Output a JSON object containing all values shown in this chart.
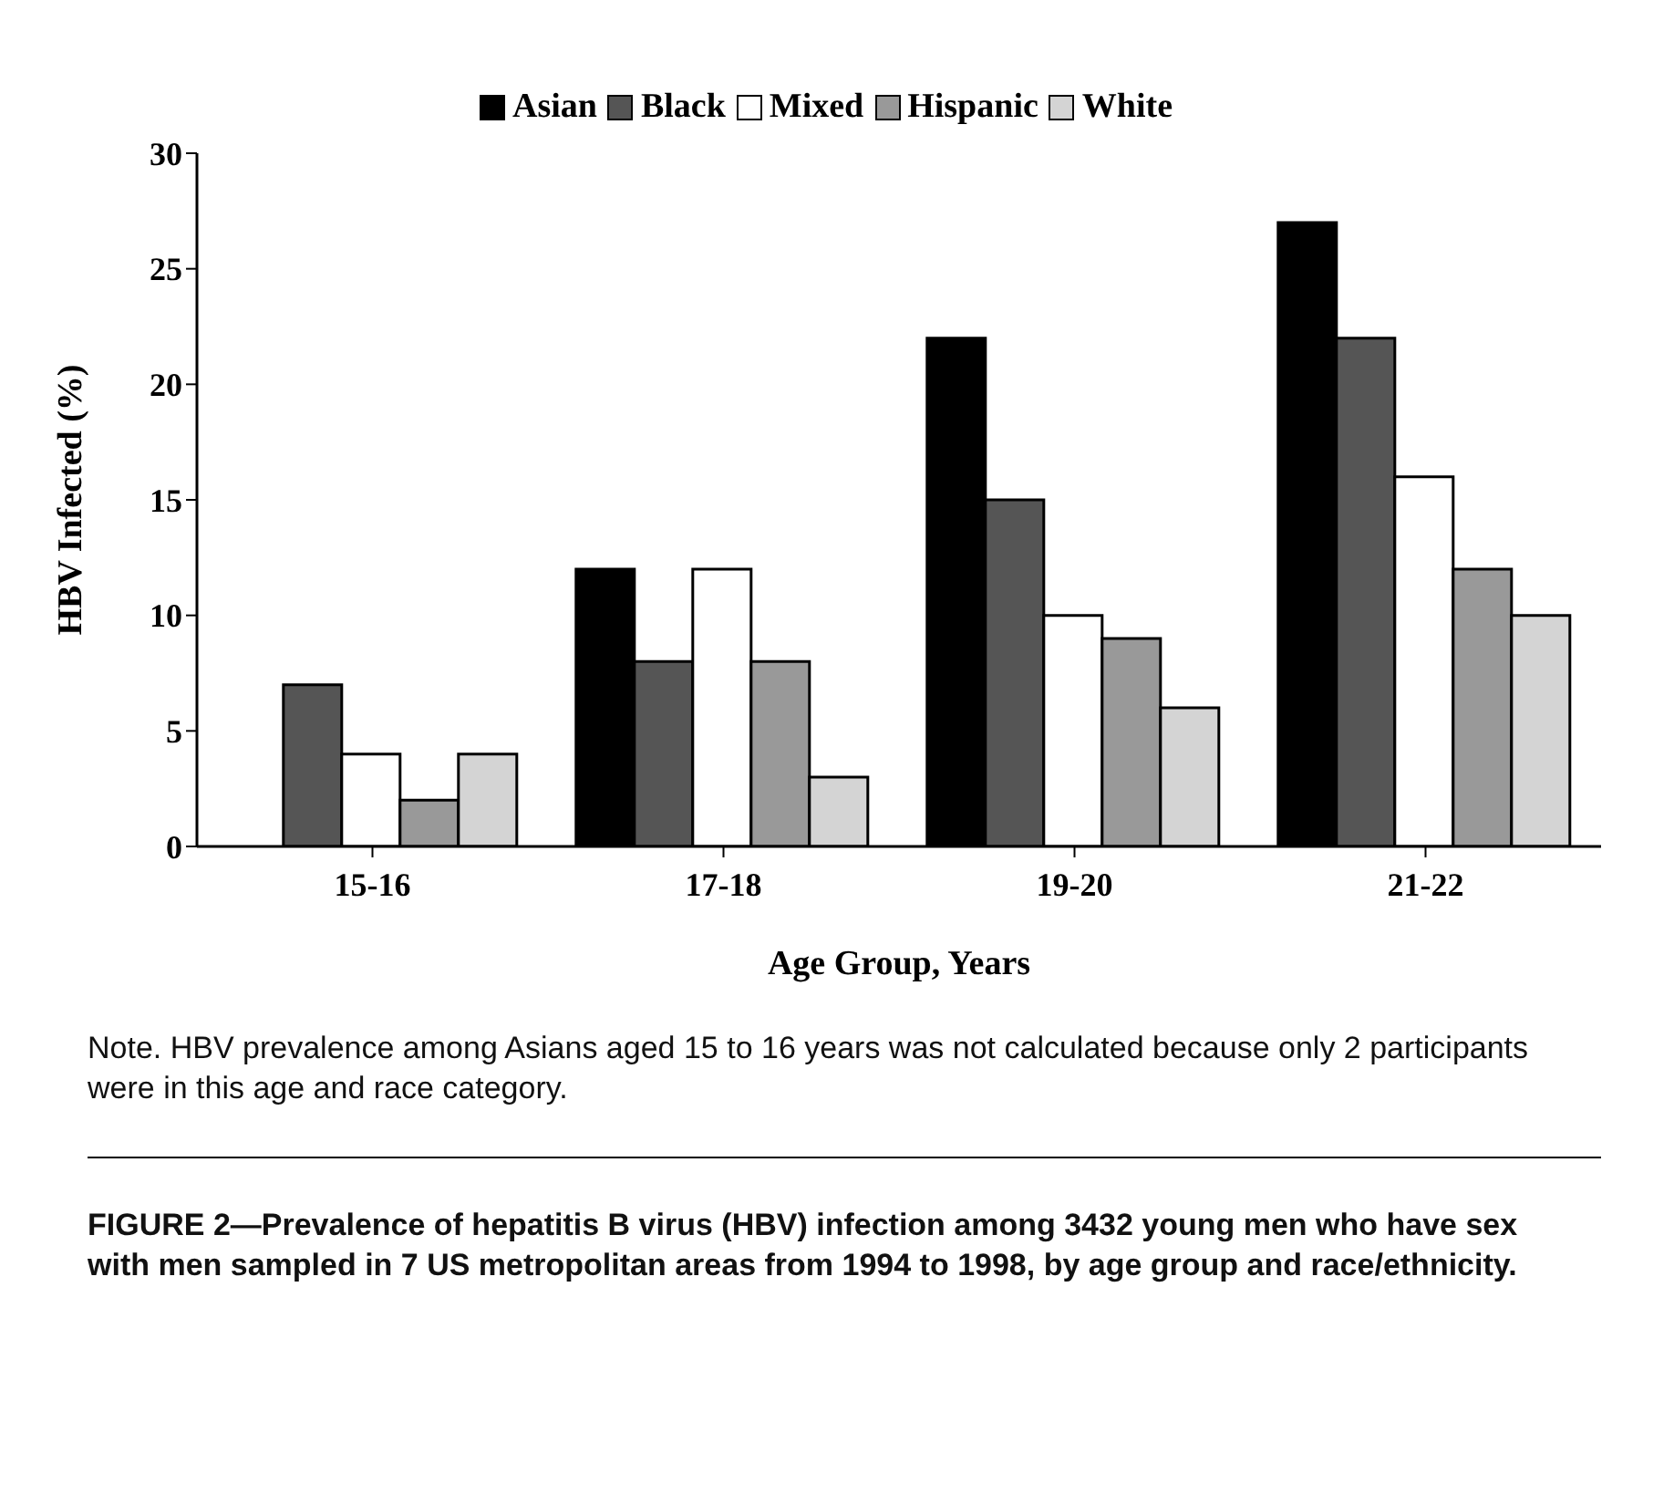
{
  "chart_data": {
    "type": "bar",
    "xlabel": "Age Group, Years",
    "ylabel": "HBV Infected (%)",
    "categories": [
      "15-16",
      "17-18",
      "19-20",
      "21-22"
    ],
    "series": [
      {
        "name": "Asian",
        "color": "#000000",
        "values": [
          null,
          12,
          22,
          27
        ]
      },
      {
        "name": "Black",
        "color": "#555555",
        "values": [
          7,
          8,
          15,
          22
        ]
      },
      {
        "name": "Mixed",
        "color": "#ffffff",
        "values": [
          4,
          12,
          10,
          16
        ]
      },
      {
        "name": "Hispanic",
        "color": "#999999",
        "values": [
          2,
          8,
          9,
          12
        ]
      },
      {
        "name": "White",
        "color": "#d4d4d4",
        "values": [
          4,
          3,
          6,
          10
        ]
      }
    ],
    "ylim": [
      0,
      30
    ],
    "yticks": [
      0,
      5,
      10,
      15,
      20,
      25,
      30
    ],
    "grid": false,
    "legend": "top",
    "annotations": [
      "Note. HBV prevalence among Asians aged 15 to 16 years was not calculated because only 2 participants were in this age and race category.",
      "FIGURE 2—Prevalence of hepatitis B virus (HBV) infection among 3432 young men who have sex with men sampled in 7 US metropolitan areas from 1994 to 1998, by age group and race/ethnicity."
    ]
  }
}
